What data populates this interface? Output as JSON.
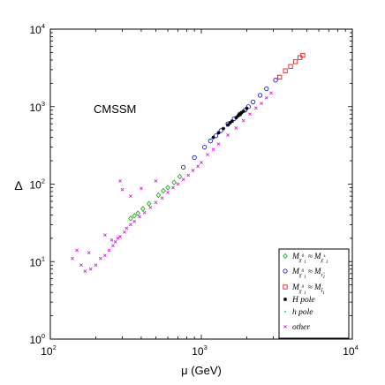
{
  "chart_data": {
    "type": "scatter",
    "title": "",
    "annotation": "CMSSM",
    "xlabel": "μ (GeV)",
    "ylabel": "Δ",
    "xscale": "log",
    "yscale": "log",
    "xlim": [
      100,
      10000
    ],
    "ylim": [
      1,
      10000
    ],
    "xticks": [
      {
        "base": "10",
        "exp": "2"
      },
      {
        "base": "10",
        "exp": "3"
      },
      {
        "base": "10",
        "exp": "4"
      }
    ],
    "yticks": [
      {
        "base": "10",
        "exp": "0"
      },
      {
        "base": "10",
        "exp": "1"
      },
      {
        "base": "10",
        "exp": "2"
      },
      {
        "base": "10",
        "exp": "3"
      },
      {
        "base": "10",
        "exp": "4"
      }
    ],
    "legend_position": "bottom-right",
    "grid": false,
    "series": [
      {
        "name": "M_χ1^0 ≈ M_χ1^±",
        "marker": "diamond",
        "color": "#22aa22",
        "points": [
          [
            340,
            36
          ],
          [
            360,
            39
          ],
          [
            380,
            42
          ],
          [
            410,
            48
          ],
          [
            450,
            56
          ],
          [
            520,
            72
          ],
          [
            560,
            82
          ],
          [
            600,
            90
          ],
          [
            660,
            105
          ],
          [
            720,
            125
          ]
        ]
      },
      {
        "name": "M_χ1^0 ≈ M_τ̃1",
        "marker": "circle",
        "color": "#2222cc",
        "points": [
          [
            1050,
            300
          ],
          [
            1150,
            360
          ],
          [
            1250,
            420
          ],
          [
            1350,
            490
          ],
          [
            1500,
            600
          ],
          [
            1650,
            700
          ],
          [
            1800,
            800
          ],
          [
            1950,
            900
          ],
          [
            2050,
            1000
          ],
          [
            2200,
            1150
          ],
          [
            2450,
            1400
          ],
          [
            2700,
            1700
          ],
          [
            3100,
            2200
          ],
          [
            760,
            165
          ],
          [
            900,
            220
          ]
        ]
      },
      {
        "name": "M_χ1^0 ≈ M_t̃1",
        "marker": "square",
        "color": "#dd2222",
        "points": [
          [
            3300,
            2400
          ],
          [
            3600,
            2900
          ],
          [
            3900,
            3300
          ],
          [
            4200,
            3800
          ],
          [
            4500,
            4300
          ],
          [
            4700,
            4600
          ]
        ]
      },
      {
        "name": "H pole",
        "marker": "star",
        "color": "#000000",
        "points": [
          [
            1200,
            400
          ],
          [
            1300,
            460
          ],
          [
            1400,
            520
          ],
          [
            1500,
            580
          ],
          [
            1600,
            650
          ],
          [
            1700,
            720
          ],
          [
            1800,
            800
          ],
          [
            1900,
            870
          ],
          [
            2000,
            950
          ],
          [
            1550,
            620
          ],
          [
            1750,
            760
          ],
          [
            1850,
            840
          ]
        ]
      },
      {
        "name": "h pole",
        "marker": "dot",
        "color": "#22cccc",
        "points": [
          [
            1150,
            380
          ],
          [
            1320,
            470
          ],
          [
            1480,
            560
          ],
          [
            1620,
            660
          ],
          [
            1780,
            760
          ],
          [
            1950,
            880
          ]
        ]
      },
      {
        "name": "other",
        "marker": "x",
        "color": "#dd22dd",
        "points": [
          [
            140,
            11
          ],
          [
            160,
            9
          ],
          [
            170,
            7.5
          ],
          [
            185,
            8
          ],
          [
            200,
            9
          ],
          [
            215,
            11
          ],
          [
            230,
            12
          ],
          [
            245,
            14
          ],
          [
            260,
            16
          ],
          [
            270,
            18
          ],
          [
            280,
            20
          ],
          [
            290,
            21
          ],
          [
            310,
            24
          ],
          [
            320,
            27
          ],
          [
            340,
            30
          ],
          [
            360,
            33
          ],
          [
            390,
            38
          ],
          [
            420,
            43
          ],
          [
            460,
            50
          ],
          [
            500,
            58
          ],
          [
            550,
            66
          ],
          [
            600,
            78
          ],
          [
            650,
            90
          ],
          [
            700,
            100
          ],
          [
            760,
            115
          ],
          [
            820,
            130
          ],
          [
            880,
            150
          ],
          [
            950,
            170
          ],
          [
            1000,
            190
          ],
          [
            1100,
            240
          ],
          [
            1200,
            280
          ],
          [
            1300,
            330
          ],
          [
            1500,
            430
          ],
          [
            1700,
            530
          ],
          [
            1900,
            660
          ],
          [
            2100,
            800
          ],
          [
            2300,
            960
          ],
          [
            2500,
            1100
          ],
          [
            2700,
            1300
          ],
          [
            2900,
            1500
          ],
          [
            150,
            14
          ],
          [
            180,
            13
          ],
          [
            255,
            19
          ],
          [
            290,
            110
          ],
          [
            300,
            85
          ],
          [
            340,
            70
          ],
          [
            400,
            88
          ],
          [
            500,
            110
          ],
          [
            230,
            22
          ]
        ]
      }
    ]
  }
}
